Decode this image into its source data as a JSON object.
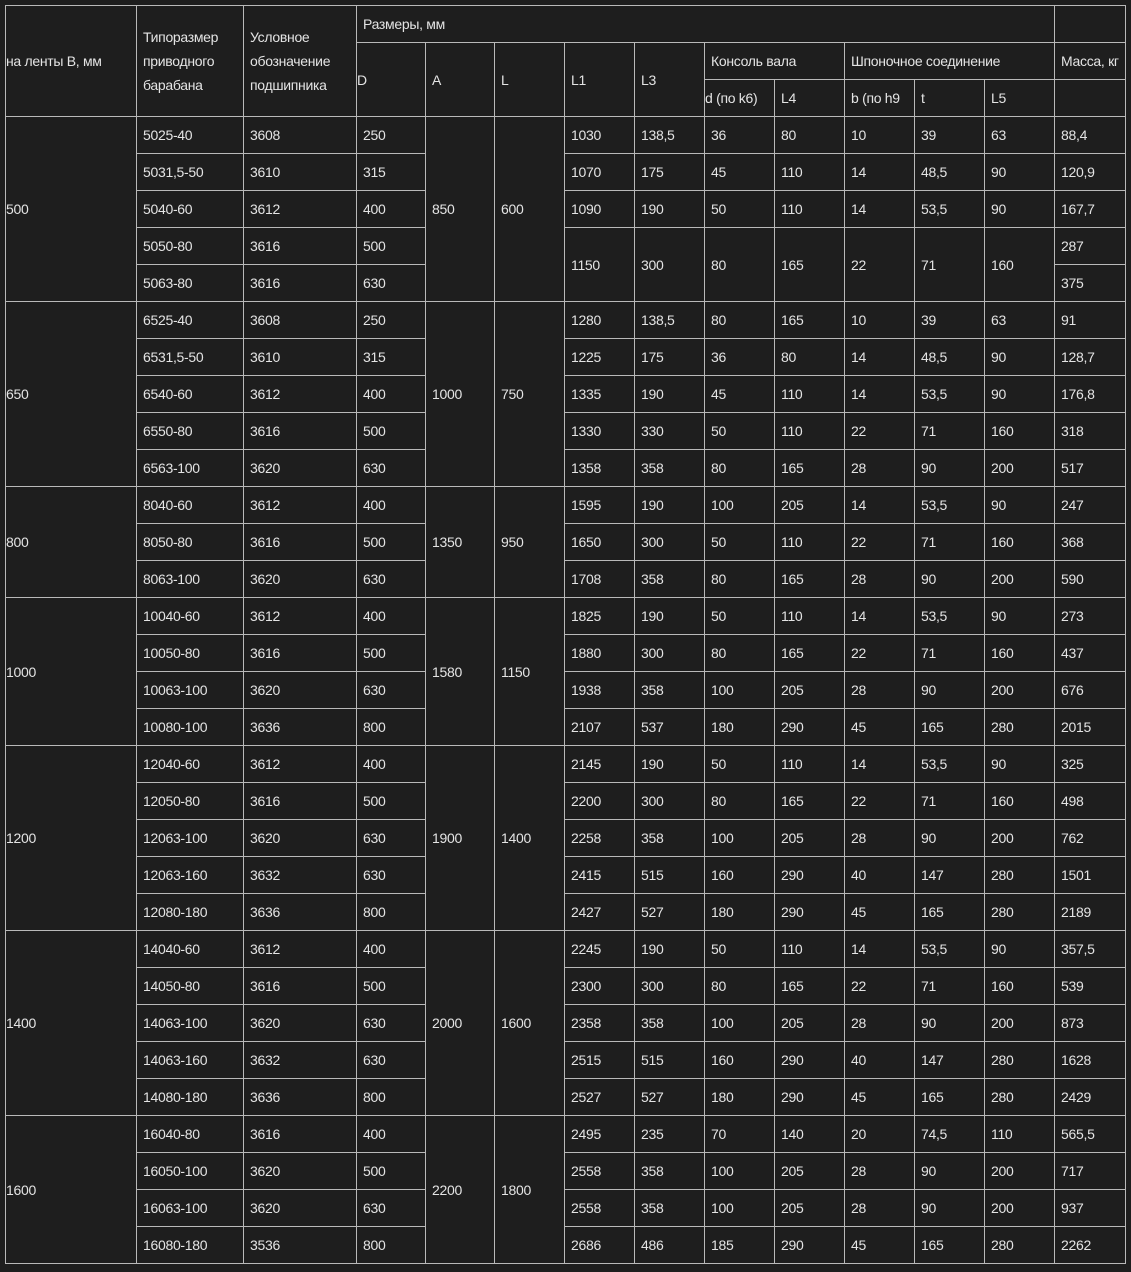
{
  "header": {
    "belt_width": "на ленты B, мм",
    "drum_type": "Типоразмер приводного барабана",
    "bearing": "Условное обозначение подшипника",
    "dimensions": "Размеры, мм",
    "D": "D",
    "A": "A",
    "L": "L",
    "L1": "L1",
    "L3": "L3",
    "shaft": "Консоль вала",
    "d": "d (по k6)",
    "L4": "L4",
    "key": "Шпоночное соединение",
    "b": "b (по h9",
    "t": "t",
    "L5": "L5",
    "mass": "Масса, кг"
  },
  "groups": [
    {
      "B": "500",
      "A": "850",
      "L": "600",
      "rows": [
        [
          "5025-40",
          "3608",
          "250",
          "1030",
          "138,5",
          "36",
          "80",
          "10",
          "39",
          "63",
          "88,4"
        ],
        [
          "5031,5-50",
          "3610",
          "315",
          "1070",
          "175",
          "45",
          "110",
          "14",
          "48,5",
          "90",
          "120,9"
        ],
        [
          "5040-60",
          "3612",
          "400",
          "1090",
          "190",
          "50",
          "110",
          "14",
          "53,5",
          "90",
          "167,7"
        ],
        [
          "5050-80",
          "3616",
          "500",
          "1150",
          "300",
          "80",
          "165",
          "22",
          "71",
          "160",
          "287"
        ],
        [
          "5063-80",
          "3616",
          "630",
          null,
          null,
          null,
          null,
          null,
          null,
          null,
          "375"
        ]
      ]
    },
    {
      "B": "650",
      "A": "1000",
      "L": "750",
      "rows": [
        [
          "6525-40",
          "3608",
          "250",
          "1280",
          "138,5",
          "80",
          "165",
          "10",
          "39",
          "63",
          "91"
        ],
        [
          "6531,5-50",
          "3610",
          "315",
          "1225",
          "175",
          "36",
          "80",
          "14",
          "48,5",
          "90",
          "128,7"
        ],
        [
          "6540-60",
          "3612",
          "400",
          "1335",
          "190",
          "45",
          "110",
          "14",
          "53,5",
          "90",
          "176,8"
        ],
        [
          "6550-80",
          "3616",
          "500",
          "1330",
          "330",
          "50",
          "110",
          "22",
          "71",
          "160",
          "318"
        ],
        [
          "6563-100",
          "3620",
          "630",
          "1358",
          "358",
          "80",
          "165",
          "28",
          "90",
          "200",
          "517"
        ]
      ]
    },
    {
      "B": "800",
      "A": "1350",
      "L": "950",
      "rows": [
        [
          "8040-60",
          "3612",
          "400",
          "1595",
          "190",
          "100",
          "205",
          "14",
          "53,5",
          "90",
          "247"
        ],
        [
          "8050-80",
          "3616",
          "500",
          "1650",
          "300",
          "50",
          "110",
          "22",
          "71",
          "160",
          "368"
        ],
        [
          "8063-100",
          "3620",
          "630",
          "1708",
          "358",
          "80",
          "165",
          "28",
          "90",
          "200",
          "590"
        ]
      ]
    },
    {
      "B": "1000",
      "A": "1580",
      "L": "1150",
      "rows": [
        [
          "10040-60",
          "3612",
          "400",
          "1825",
          "190",
          "50",
          "110",
          "14",
          "53,5",
          "90",
          "273"
        ],
        [
          "10050-80",
          "3616",
          "500",
          "1880",
          "300",
          "80",
          "165",
          "22",
          "71",
          "160",
          "437"
        ],
        [
          "10063-100",
          "3620",
          "630",
          "1938",
          "358",
          "100",
          "205",
          "28",
          "90",
          "200",
          "676"
        ],
        [
          "10080-100",
          "3636",
          "800",
          "2107",
          "537",
          "180",
          "290",
          "45",
          "165",
          "280",
          "2015"
        ]
      ]
    },
    {
      "B": "1200",
      "A": "1900",
      "L": "1400",
      "rows": [
        [
          "12040-60",
          "3612",
          "400",
          "2145",
          "190",
          "50",
          "110",
          "14",
          "53,5",
          "90",
          "325"
        ],
        [
          "12050-80",
          "3616",
          "500",
          "2200",
          "300",
          "80",
          "165",
          "22",
          "71",
          "160",
          "498"
        ],
        [
          "12063-100",
          "3620",
          "630",
          "2258",
          "358",
          "100",
          "205",
          "28",
          "90",
          "200",
          "762"
        ],
        [
          "12063-160",
          "3632",
          "630",
          "2415",
          "515",
          "160",
          "290",
          "40",
          "147",
          "280",
          "1501"
        ],
        [
          "12080-180",
          "3636",
          "800",
          "2427",
          "527",
          "180",
          "290",
          "45",
          "165",
          "280",
          "2189"
        ]
      ]
    },
    {
      "B": "1400",
      "A": "2000",
      "L": "1600",
      "rows": [
        [
          "14040-60",
          "3612",
          "400",
          "2245",
          "190",
          "50",
          "110",
          "14",
          "53,5",
          "90",
          "357,5"
        ],
        [
          "14050-80",
          "3616",
          "500",
          "2300",
          "300",
          "80",
          "165",
          "22",
          "71",
          "160",
          "539"
        ],
        [
          "14063-100",
          "3620",
          "630",
          "2358",
          "358",
          "100",
          "205",
          "28",
          "90",
          "200",
          "873"
        ],
        [
          "14063-160",
          "3632",
          "630",
          "2515",
          "515",
          "160",
          "290",
          "40",
          "147",
          "280",
          "1628"
        ],
        [
          "14080-180",
          "3636",
          "800",
          "2527",
          "527",
          "180",
          "290",
          "45",
          "165",
          "280",
          "2429"
        ]
      ]
    },
    {
      "B": "1600",
      "A": "2200",
      "L": "1800",
      "rows": [
        [
          "16040-80",
          "3616",
          "400",
          "2495",
          "235",
          "70",
          "140",
          "20",
          "74,5",
          "110",
          "565,5"
        ],
        [
          "16050-100",
          "3620",
          "500",
          "2558",
          "358",
          "100",
          "205",
          "28",
          "90",
          "200",
          "717"
        ],
        [
          "16063-100",
          "3620",
          "630",
          "2558",
          "358",
          "100",
          "205",
          "28",
          "90",
          "200",
          "937"
        ],
        [
          "16080-180",
          "3536",
          "800",
          "2686",
          "486",
          "185",
          "290",
          "45",
          "165",
          "280",
          "2262"
        ]
      ]
    }
  ]
}
